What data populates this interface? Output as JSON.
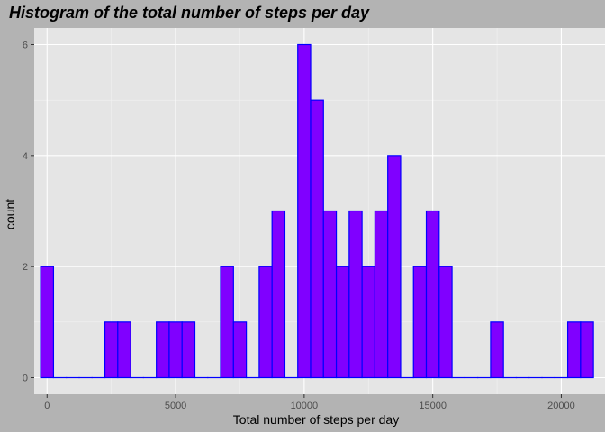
{
  "chart_data": {
    "type": "bar",
    "title": "Histogram of the total number of steps per day",
    "xlabel": "Total number of steps per day",
    "ylabel": "count",
    "xlim": [
      -500,
      21700
    ],
    "ylim": [
      -0.3,
      6.3
    ],
    "x_ticks": [
      0,
      5000,
      10000,
      15000,
      20000
    ],
    "x_tick_labels": [
      "0",
      "5000",
      "10000",
      "15000",
      "20000"
    ],
    "y_ticks": [
      0,
      2,
      4,
      6
    ],
    "y_tick_labels": [
      "0",
      "2",
      "4",
      "6"
    ],
    "bin_width": 500,
    "bin_starts": [
      -250,
      250,
      750,
      1250,
      1750,
      2250,
      2750,
      3250,
      3750,
      4250,
      4750,
      5250,
      5750,
      6250,
      6750,
      7250,
      7750,
      8250,
      8750,
      9250,
      9750,
      10250,
      10750,
      11250,
      11750,
      12250,
      12750,
      13250,
      13750,
      14250,
      14750,
      15250,
      15750,
      16250,
      16750,
      17250,
      17750,
      18250,
      18750,
      19250,
      19750,
      20250,
      20750
    ],
    "values": [
      2,
      0,
      0,
      0,
      0,
      1,
      1,
      0,
      0,
      1,
      1,
      1,
      0,
      0,
      2,
      1,
      0,
      2,
      3,
      0,
      6,
      5,
      3,
      2,
      3,
      2,
      3,
      4,
      0,
      2,
      3,
      2,
      0,
      0,
      0,
      1,
      0,
      0,
      0,
      0,
      0,
      1,
      1
    ],
    "grid": true,
    "legend": "none",
    "colors": {
      "bar_fill": "#8000ff",
      "bar_outline": "#0000ff",
      "panel_background": "#e5e5e5",
      "plot_background": "#b3b3b3",
      "grid_major": "#ffffff",
      "grid_minor": "#f2f2f2"
    }
  }
}
